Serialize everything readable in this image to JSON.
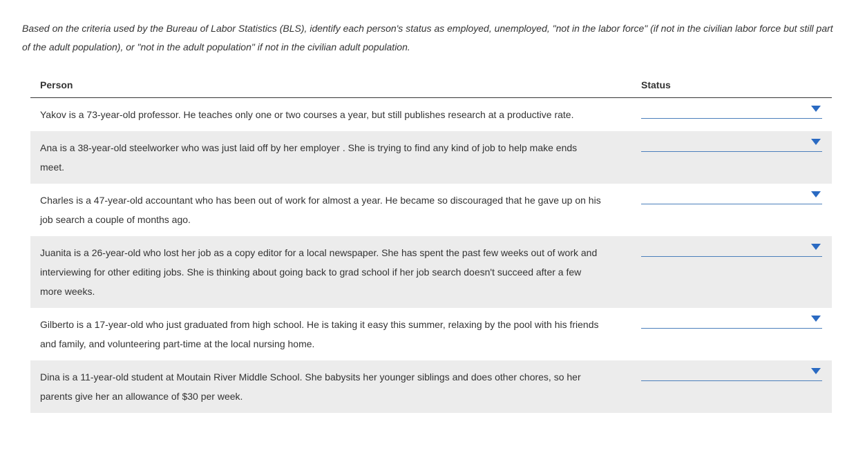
{
  "prompt": "Based on the criteria used by the Bureau of Labor Statistics (BLS), identify each person's status as employed, unemployed, \"not in the labor force\" (if not in the civilian labor force but still part of the adult population), or \"not in the adult population\" if not in the civilian adult population.",
  "columns": {
    "person": "Person",
    "status": "Status"
  },
  "rows": [
    {
      "person": "Yakov is a 73-year-old professor. He teaches only one or two courses a year, but still publishes research at a productive rate.",
      "status": ""
    },
    {
      "person": "Ana is a 38-year-old steelworker who was just laid off by her employer . She is trying to find any kind of job to help make ends meet.",
      "status": ""
    },
    {
      "person": "Charles is a 47-year-old accountant who has been out of work for almost a year. He became so discouraged that he gave up on his job search a couple of months ago.",
      "status": ""
    },
    {
      "person": "Juanita is a 26-year-old who lost her job as a copy editor for a local newspaper. She has spent the past few weeks out of work and interviewing for other editing jobs. She is thinking about going back to grad school if her job search doesn't succeed after a few more weeks.",
      "status": ""
    },
    {
      "person": "Gilberto is a 17-year-old who just graduated from high school. He is taking it easy this summer, relaxing by the pool with his friends and family, and volunteering part-time at the local nursing home.",
      "status": ""
    },
    {
      "person": "Dina is a 11-year-old student at Moutain River Middle School. She babysits her younger siblings and does other chores, so her parents give her an allowance of $30 per week.",
      "status": ""
    }
  ],
  "dropdown": {
    "underline_color": "#4a7ebb",
    "caret_color": "#2a6ac2"
  },
  "colors": {
    "text": "#333333",
    "alt_row_bg": "#ececec",
    "header_border": "#333333",
    "page_bg": "#ffffff"
  }
}
